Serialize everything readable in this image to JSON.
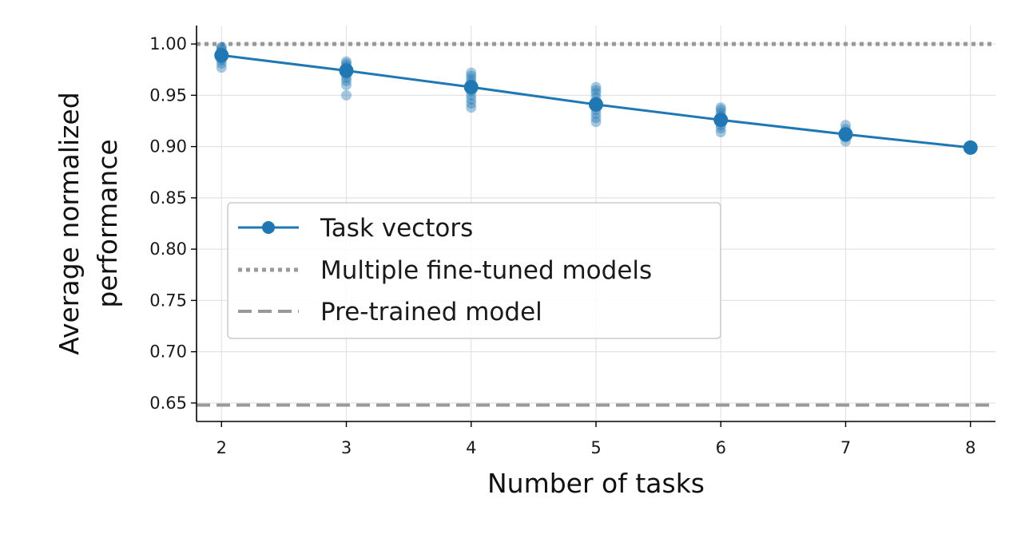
{
  "chart_data": {
    "type": "line",
    "title": "",
    "xlabel": "Number of tasks",
    "ylabel_lines": [
      "Average normalized",
      "performance"
    ],
    "x_ticks": [
      2,
      3,
      4,
      5,
      6,
      7,
      8
    ],
    "y_ticks": [
      "0.65",
      "0.70",
      "0.75",
      "0.80",
      "0.85",
      "0.90",
      "0.95",
      "1.00"
    ],
    "xlim": [
      1.8,
      8.2
    ],
    "ylim": [
      0.632,
      1.018
    ],
    "grid": true,
    "legend_placement": "center-left",
    "series": [
      {
        "name": "Task vectors",
        "color": "#1f77b4",
        "x": [
          2,
          3,
          4,
          5,
          6,
          7,
          8
        ],
        "y": [
          0.989,
          0.974,
          0.958,
          0.941,
          0.926,
          0.912,
          0.899
        ]
      }
    ],
    "scatter_subsets": [
      {
        "x": 2,
        "y": [
          0.977,
          0.981,
          0.984,
          0.986,
          0.988,
          0.99,
          0.992,
          0.994,
          0.996,
          0.997
        ]
      },
      {
        "x": 3,
        "y": [
          0.95,
          0.96,
          0.964,
          0.967,
          0.97,
          0.972,
          0.975,
          0.977,
          0.979,
          0.981,
          0.983
        ]
      },
      {
        "x": 4,
        "y": [
          0.938,
          0.942,
          0.946,
          0.95,
          0.954,
          0.957,
          0.96,
          0.963,
          0.966,
          0.969,
          0.972
        ]
      },
      {
        "x": 5,
        "y": [
          0.924,
          0.928,
          0.932,
          0.936,
          0.94,
          0.944,
          0.948,
          0.952,
          0.955,
          0.958
        ]
      },
      {
        "x": 6,
        "y": [
          0.914,
          0.918,
          0.921,
          0.924,
          0.927,
          0.93,
          0.933,
          0.936,
          0.938
        ]
      },
      {
        "x": 7,
        "y": [
          0.905,
          0.909,
          0.913,
          0.917,
          0.921
        ]
      },
      {
        "x": 8,
        "y": [
          0.899
        ]
      }
    ],
    "reference_lines": [
      {
        "name": "Multiple fine-tuned models",
        "y": 1.0,
        "style": "dotted",
        "color": "#999999"
      },
      {
        "name": "Pre-trained model",
        "y": 0.648,
        "style": "dashed",
        "color": "#999999"
      }
    ]
  }
}
